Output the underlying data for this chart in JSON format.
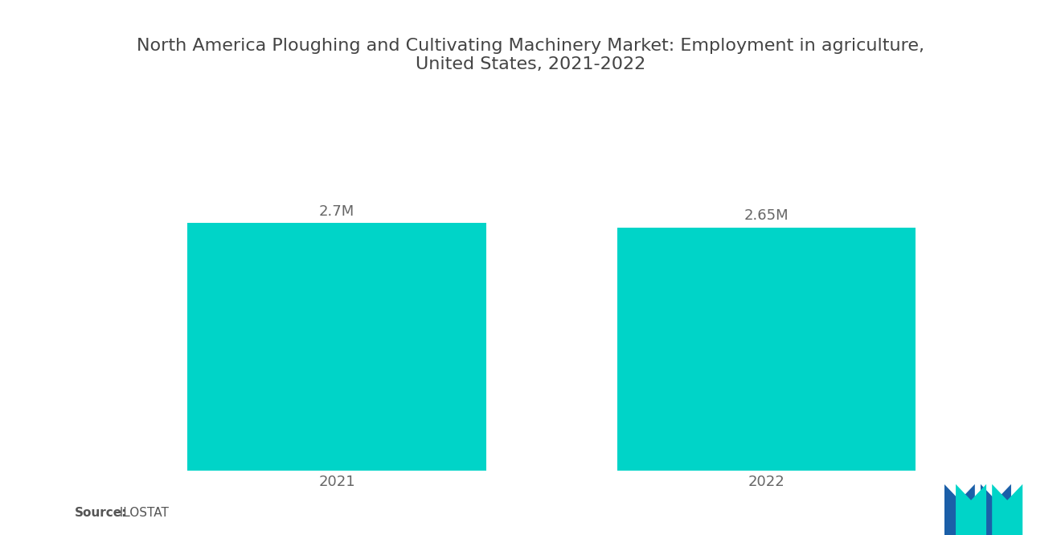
{
  "title": "North America Ploughing and Cultivating Machinery Market: Employment in agriculture,\nUnited States, 2021-2022",
  "categories": [
    "2021",
    "2022"
  ],
  "values": [
    2.7,
    2.65
  ],
  "labels": [
    "2.7M",
    "2.65M"
  ],
  "bar_color": "#00D4C8",
  "background_color": "#ffffff",
  "title_fontsize": 16,
  "label_fontsize": 13,
  "tick_fontsize": 13,
  "source_text_bold": "Source:",
  "source_text_normal": "  ILOSTAT",
  "ylim": [
    0,
    3.5
  ],
  "bar_width": 0.32,
  "x_positions": [
    0.27,
    0.73
  ],
  "xlim": [
    0,
    1
  ]
}
